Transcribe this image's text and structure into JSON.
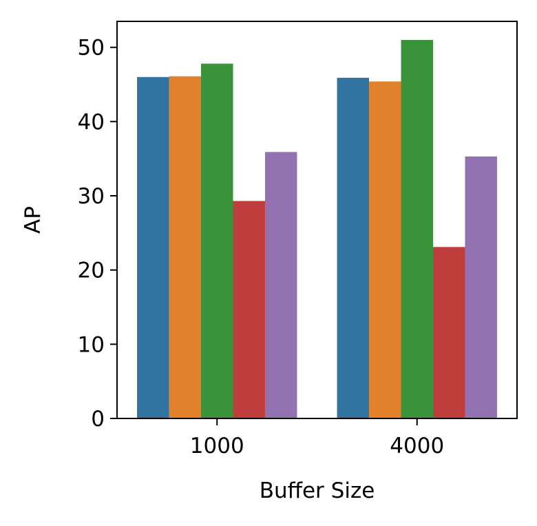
{
  "chart_data": {
    "type": "bar",
    "title": "",
    "xlabel": "Buffer Size",
    "ylabel": "AP",
    "categories": [
      "1000",
      "4000"
    ],
    "series": [
      {
        "color": "#3274a1",
        "values": [
          46.0,
          45.9
        ]
      },
      {
        "color": "#e1812c",
        "values": [
          46.1,
          45.4
        ]
      },
      {
        "color": "#3a923a",
        "values": [
          47.8,
          51.0
        ]
      },
      {
        "color": "#c03d3e",
        "values": [
          29.3,
          23.1
        ]
      },
      {
        "color": "#9372b2",
        "values": [
          35.9,
          35.3
        ]
      }
    ],
    "ylim": [
      0,
      53.5
    ],
    "yticks": [
      "0",
      "10",
      "20",
      "30",
      "40",
      "50"
    ],
    "grid": false,
    "legend": "none"
  }
}
